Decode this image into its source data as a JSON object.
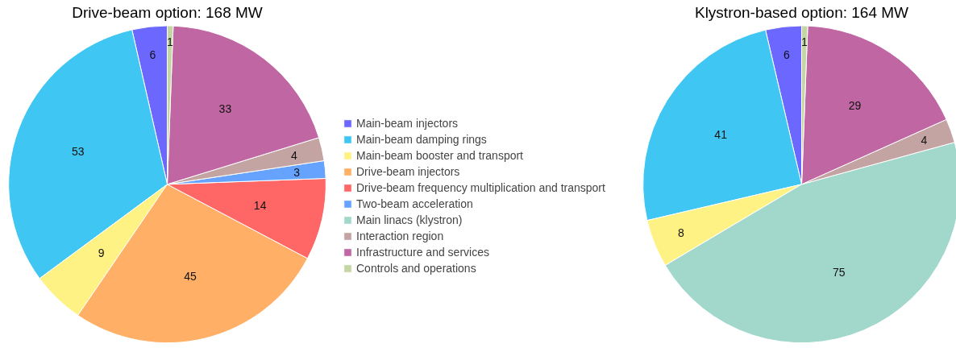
{
  "chart_data": {
    "type": "pie",
    "legend": "right",
    "data_labels": true,
    "categories": [
      "Main-beam injectors",
      "Main-beam damping rings",
      "Main-beam booster and transport",
      "Drive-beam injectors",
      "Drive-beam frequency multiplication and transport",
      "Two-beam acceleration",
      "Main linacs (klystron)",
      "Interaction region",
      "Infrastructure and services",
      "Controls and operations"
    ],
    "colors": [
      "#6b67ff",
      "#40c6f2",
      "#fff284",
      "#ffb066",
      "#ff6666",
      "#66a3ff",
      "#a2d8cc",
      "#c4a3a3",
      "#c066a3",
      "#c4d6a3"
    ],
    "series": [
      {
        "name": "Drive-beam option: 168 MW",
        "values": [
          6,
          53,
          9,
          45,
          14,
          3,
          null,
          4,
          33,
          1
        ]
      },
      {
        "name": "Klystron-based option: 164 MW",
        "values": [
          6,
          41,
          8,
          null,
          null,
          null,
          75,
          4,
          29,
          1
        ]
      }
    ]
  }
}
